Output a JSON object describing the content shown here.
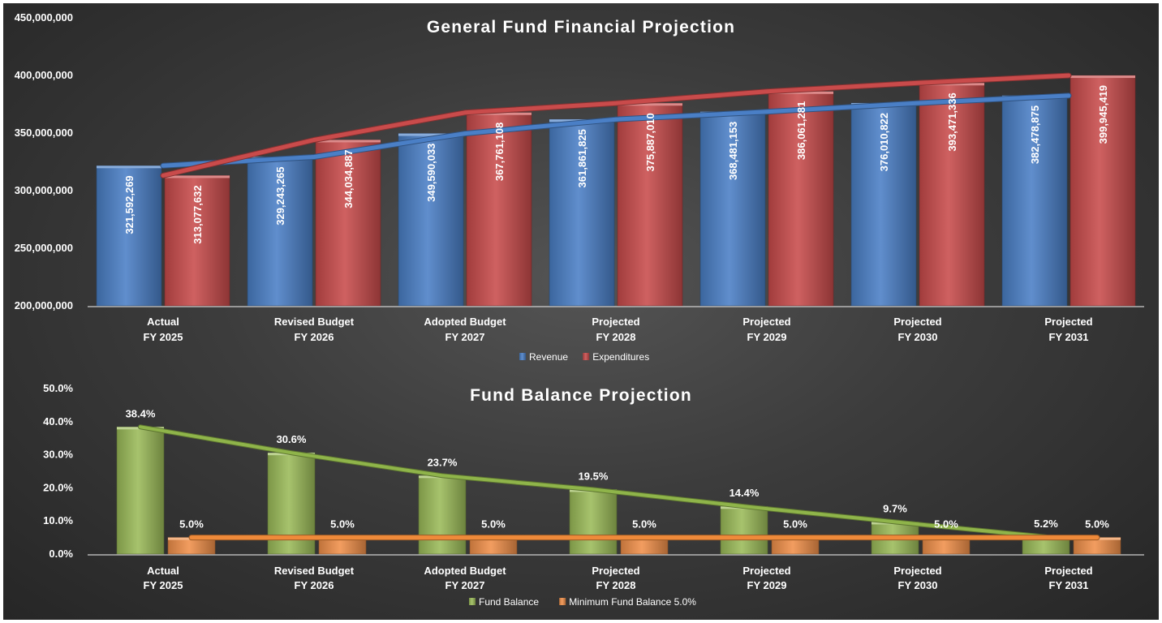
{
  "chart_data": [
    {
      "type": "bar",
      "title": "General Fund Financial Projection",
      "categories": [
        [
          "Actual",
          "FY 2025"
        ],
        [
          "Revised Budget",
          "FY 2026"
        ],
        [
          "Adopted Budget",
          "FY 2027"
        ],
        [
          "Projected",
          "FY 2028"
        ],
        [
          "Projected",
          "FY 2029"
        ],
        [
          "Projected",
          "FY 2030"
        ],
        [
          "Projected",
          "FY 2031"
        ]
      ],
      "series": [
        {
          "name": "Revenue",
          "color": "#4a7fc6",
          "values": [
            321592269,
            329243265,
            349590033,
            361861825,
            368481153,
            376010822,
            382478875
          ],
          "labels": [
            "321,592,269",
            "329,243,265",
            "349,590,033",
            "361,861,825",
            "368,481,153",
            "376,010,822",
            "382,478,875"
          ]
        },
        {
          "name": "Expenditures",
          "color": "#c94b4b",
          "values": [
            313077632,
            344034887,
            367761108,
            375887010,
            386061281,
            393471336,
            399945419
          ],
          "labels": [
            "313,077,632",
            "344,034,887",
            "367,761,108",
            "375,887,010",
            "386,061,281",
            "393,471,336",
            "399,945,419"
          ]
        }
      ],
      "overlay_lines": [
        "Revenue",
        "Expenditures"
      ],
      "ylim": [
        200000000,
        450000000
      ],
      "yticks": [
        200000000,
        250000000,
        300000000,
        350000000,
        400000000,
        450000000
      ],
      "ytick_labels": [
        "200,000,000",
        "250,000,000",
        "300,000,000",
        "350,000,000",
        "400,000,000",
        "450,000,000"
      ],
      "grid": false,
      "legend": "bottom"
    },
    {
      "type": "bar",
      "title": "Fund Balance Projection",
      "categories": [
        [
          "Actual",
          "FY 2025"
        ],
        [
          "Revised Budget",
          "FY 2026"
        ],
        [
          "Adopted Budget",
          "FY 2027"
        ],
        [
          "Projected",
          "FY 2028"
        ],
        [
          "Projected",
          "FY 2029"
        ],
        [
          "Projected",
          "FY 2030"
        ],
        [
          "Projected",
          "FY 2031"
        ]
      ],
      "series": [
        {
          "name": "Fund Balance",
          "color": "#9bbb59",
          "values": [
            38.4,
            30.6,
            23.7,
            19.5,
            14.4,
            9.7,
            5.2
          ],
          "labels": [
            "38.4%",
            "30.6%",
            "23.7%",
            "19.5%",
            "14.4%",
            "9.7%",
            "5.2%"
          ]
        },
        {
          "name": "Minimum Fund Balance 5.0%",
          "color": "#f0904a",
          "values": [
            5.0,
            5.0,
            5.0,
            5.0,
            5.0,
            5.0,
            5.0
          ],
          "labels": [
            "5.0%",
            "5.0%",
            "5.0%",
            "5.0%",
            "5.0%",
            "5.0%",
            "5.0%"
          ]
        }
      ],
      "overlay_lines": [
        "Fund Balance",
        "Minimum Fund Balance 5.0%"
      ],
      "ylim": [
        0,
        50
      ],
      "yticks": [
        0,
        10,
        20,
        30,
        40,
        50
      ],
      "ytick_labels": [
        "0.0%",
        "10.0%",
        "20.0%",
        "30.0%",
        "40.0%",
        "50.0%"
      ],
      "grid": false,
      "legend": "bottom"
    }
  ]
}
